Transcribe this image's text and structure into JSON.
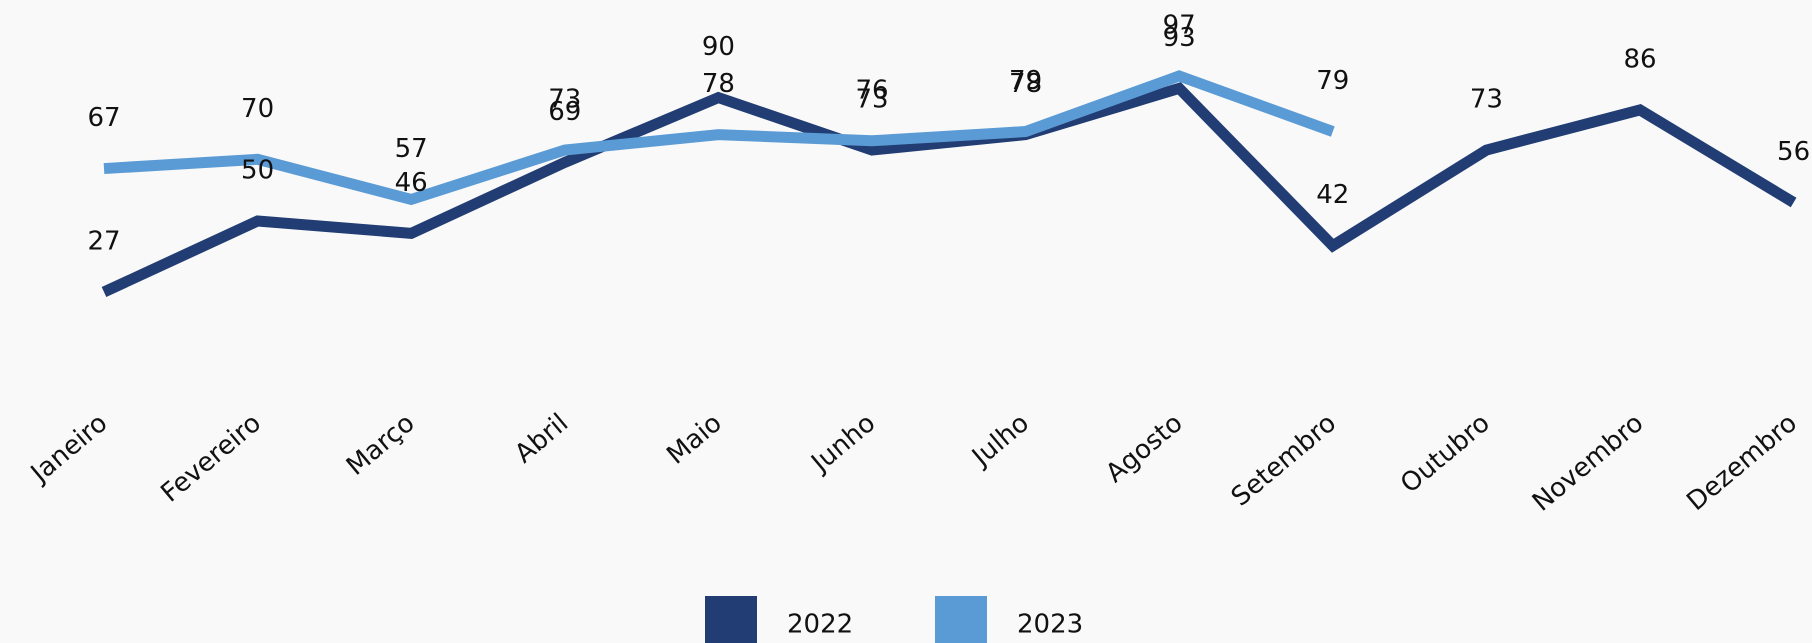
{
  "chart_data": {
    "type": "line",
    "categories": [
      "Janeiro",
      "Fevereiro",
      "Março",
      "Abril",
      "Maio",
      "Junho",
      "Julho",
      "Agosto",
      "Setembro",
      "Outubro",
      "Novembro",
      "Dezembro"
    ],
    "series": [
      {
        "name": "2022",
        "color": "#213d73",
        "values": [
          27,
          50,
          46,
          69,
          90,
          73,
          78,
          93,
          42,
          73,
          86,
          56
        ]
      },
      {
        "name": "2023",
        "color": "#5b9bd5",
        "values": [
          67,
          70,
          57,
          73,
          78,
          76,
          79,
          97,
          79,
          null,
          null,
          null
        ]
      }
    ],
    "legend": "bottom"
  }
}
